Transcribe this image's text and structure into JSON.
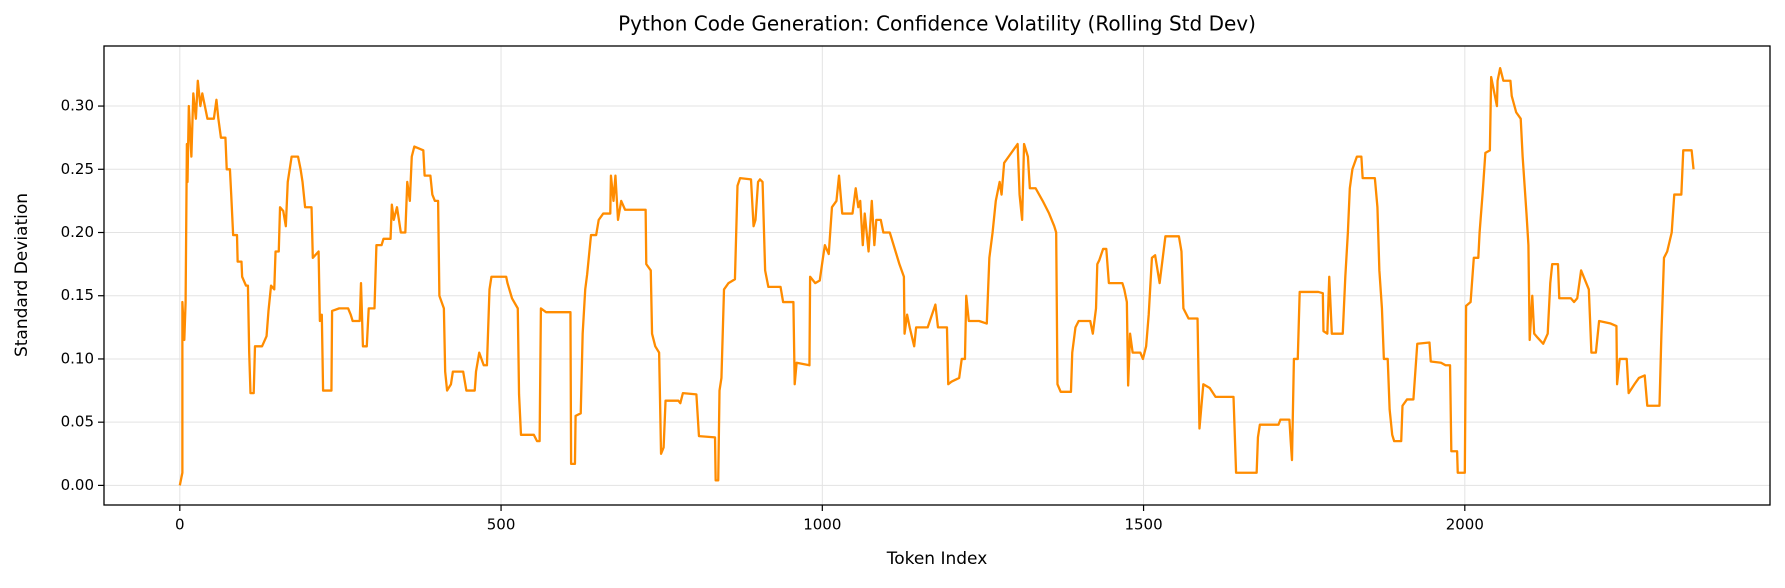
{
  "chart_data": {
    "type": "line",
    "title": "Python Code Generation: Confidence Volatility (Rolling Std Dev)",
    "x_label": "Token Index",
    "y_label": "Standard Deviation",
    "color": "#ff8c00",
    "grid": true,
    "xlim": [
      -118,
      2475
    ],
    "ylim": [
      -0.0155,
      0.3475
    ],
    "xticks": [
      0,
      500,
      1000,
      1500,
      2000
    ],
    "yticks": [
      {
        "value": 0,
        "label": "0.00"
      },
      {
        "value": 0.05,
        "label": "0.05"
      },
      {
        "value": 0.1,
        "label": "0.10"
      },
      {
        "value": 0.15,
        "label": "0.15"
      },
      {
        "value": 0.2,
        "label": "0.20"
      },
      {
        "value": 0.25,
        "label": "0.25"
      },
      {
        "value": 0.3,
        "label": "0.30"
      }
    ],
    "x": [
      0,
      4,
      4,
      7,
      9,
      11,
      12,
      14,
      18,
      21,
      25,
      28,
      32,
      35,
      43,
      53,
      57,
      60,
      64,
      71,
      73,
      78,
      80,
      83,
      89,
      90,
      96,
      97,
      103,
      106,
      108,
      110,
      115,
      117,
      128,
      135,
      138,
      142,
      147,
      149,
      154,
      156,
      161,
      165,
      168,
      174,
      184,
      188,
      191,
      195,
      205,
      207,
      216,
      218,
      221,
      223,
      236,
      237,
      248,
      262,
      266,
      269,
      280,
      282,
      285,
      291,
      294,
      303,
      306,
      314,
      317,
      328,
      330,
      333,
      338,
      344,
      351,
      354,
      358,
      361,
      365,
      379,
      381,
      390,
      393,
      397,
      402,
      404,
      411,
      413,
      416,
      422,
      425,
      441,
      446,
      459,
      461,
      466,
      473,
      478,
      482,
      485,
      508,
      510,
      517,
      526,
      528,
      531,
      551,
      556,
      560,
      562,
      570,
      608,
      609,
      615,
      616,
      624,
      627,
      631,
      634,
      640,
      648,
      652,
      659,
      670,
      671,
      675,
      678,
      682,
      687,
      693,
      725,
      726,
      733,
      735,
      740,
      746,
      749,
      753,
      756,
      776,
      779,
      783,
      804,
      808,
      833,
      834,
      838,
      840,
      843,
      847,
      854,
      864,
      868,
      872,
      889,
      893,
      896,
      900,
      903,
      907,
      911,
      916,
      935,
      939,
      955,
      957,
      960,
      980,
      981,
      989,
      996,
      1001,
      1004,
      1010,
      1015,
      1022,
      1026,
      1031,
      1047,
      1052,
      1056,
      1059,
      1063,
      1066,
      1072,
      1077,
      1081,
      1084,
      1091,
      1095,
      1105,
      1120,
      1127,
      1128,
      1132,
      1136,
      1143,
      1146,
      1164,
      1176,
      1180,
      1194,
      1196,
      1201,
      1213,
      1217,
      1222,
      1224,
      1228,
      1244,
      1256,
      1260,
      1265,
      1270,
      1276,
      1279,
      1283,
      1290,
      1297,
      1304,
      1307,
      1311,
      1314,
      1320,
      1323,
      1332,
      1343,
      1353,
      1361,
      1364,
      1366,
      1371,
      1387,
      1389,
      1394,
      1399,
      1417,
      1421,
      1426,
      1428,
      1431,
      1437,
      1442,
      1446,
      1467,
      1470,
      1474,
      1476,
      1479,
      1483,
      1495,
      1499,
      1504,
      1508,
      1513,
      1518,
      1525,
      1534,
      1555,
      1559,
      1562,
      1570,
      1584,
      1587,
      1593,
      1603,
      1612,
      1640,
      1644,
      1676,
      1678,
      1681,
      1710,
      1713,
      1727,
      1729,
      1731,
      1734,
      1740,
      1743,
      1772,
      1779,
      1780,
      1786,
      1789,
      1793,
      1810,
      1814,
      1818,
      1821,
      1825,
      1832,
      1839,
      1841,
      1860,
      1864,
      1867,
      1871,
      1874,
      1880,
      1883,
      1887,
      1890,
      1901,
      1903,
      1910,
      1920,
      1926,
      1945,
      1947,
      1963,
      1970,
      1977,
      1979,
      1988,
      1989,
      2000,
      2002,
      2009,
      2014,
      2021,
      2023,
      2028,
      2032,
      2039,
      2041,
      2050,
      2051,
      2055,
      2060,
      2071,
      2073,
      2080,
      2087,
      2090,
      2096,
      2099,
      2101,
      2105,
      2108,
      2113,
      2122,
      2129,
      2133,
      2136,
      2145,
      2147,
      2165,
      2170,
      2175,
      2181,
      2193,
      2197,
      2204,
      2209,
      2227,
      2236,
      2237,
      2241,
      2252,
      2255,
      2264,
      2271,
      2280,
      2284,
      2303,
      2306,
      2310,
      2315,
      2322,
      2326,
      2337,
      2340,
      2353,
      2356
    ],
    "values": [
      0,
      0.01,
      0.145,
      0.115,
      0.145,
      0.27,
      0.24,
      0.3,
      0.26,
      0.31,
      0.29,
      0.32,
      0.3,
      0.31,
      0.29,
      0.29,
      0.305,
      0.29,
      0.275,
      0.275,
      0.25,
      0.25,
      0.23,
      0.198,
      0.198,
      0.177,
      0.177,
      0.165,
      0.158,
      0.158,
      0.105,
      0.073,
      0.073,
      0.11,
      0.11,
      0.118,
      0.138,
      0.158,
      0.155,
      0.185,
      0.185,
      0.22,
      0.217,
      0.205,
      0.24,
      0.26,
      0.26,
      0.25,
      0.24,
      0.22,
      0.22,
      0.18,
      0.185,
      0.13,
      0.135,
      0.075,
      0.075,
      0.138,
      0.14,
      0.14,
      0.135,
      0.13,
      0.13,
      0.16,
      0.11,
      0.11,
      0.14,
      0.14,
      0.19,
      0.19,
      0.195,
      0.195,
      0.222,
      0.21,
      0.22,
      0.2,
      0.2,
      0.24,
      0.225,
      0.26,
      0.268,
      0.265,
      0.245,
      0.245,
      0.23,
      0.225,
      0.225,
      0.15,
      0.14,
      0.09,
      0.075,
      0.08,
      0.09,
      0.09,
      0.075,
      0.075,
      0.09,
      0.105,
      0.095,
      0.095,
      0.155,
      0.165,
      0.165,
      0.16,
      0.148,
      0.14,
      0.072,
      0.04,
      0.04,
      0.035,
      0.035,
      0.14,
      0.137,
      0.137,
      0.017,
      0.017,
      0.055,
      0.057,
      0.12,
      0.155,
      0.167,
      0.198,
      0.198,
      0.21,
      0.215,
      0.215,
      0.245,
      0.225,
      0.245,
      0.21,
      0.225,
      0.218,
      0.218,
      0.175,
      0.17,
      0.12,
      0.11,
      0.105,
      0.025,
      0.03,
      0.067,
      0.067,
      0.065,
      0.073,
      0.072,
      0.039,
      0.038,
      0.004,
      0.004,
      0.075,
      0.085,
      0.155,
      0.16,
      0.163,
      0.237,
      0.243,
      0.242,
      0.205,
      0.21,
      0.24,
      0.242,
      0.24,
      0.17,
      0.157,
      0.157,
      0.145,
      0.145,
      0.08,
      0.097,
      0.095,
      0.165,
      0.16,
      0.162,
      0.18,
      0.19,
      0.183,
      0.22,
      0.225,
      0.245,
      0.215,
      0.215,
      0.235,
      0.22,
      0.225,
      0.19,
      0.215,
      0.185,
      0.225,
      0.19,
      0.21,
      0.21,
      0.2,
      0.2,
      0.175,
      0.165,
      0.12,
      0.135,
      0.125,
      0.11,
      0.125,
      0.125,
      0.143,
      0.125,
      0.125,
      0.08,
      0.082,
      0.085,
      0.1,
      0.1,
      0.15,
      0.13,
      0.13,
      0.128,
      0.18,
      0.2,
      0.225,
      0.24,
      0.23,
      0.255,
      0.26,
      0.265,
      0.27,
      0.23,
      0.21,
      0.27,
      0.26,
      0.235,
      0.235,
      0.225,
      0.215,
      0.205,
      0.2,
      0.08,
      0.074,
      0.074,
      0.105,
      0.125,
      0.13,
      0.13,
      0.12,
      0.14,
      0.175,
      0.178,
      0.187,
      0.187,
      0.16,
      0.16,
      0.155,
      0.145,
      0.079,
      0.12,
      0.105,
      0.105,
      0.1,
      0.11,
      0.135,
      0.18,
      0.182,
      0.16,
      0.197,
      0.197,
      0.185,
      0.14,
      0.132,
      0.132,
      0.045,
      0.08,
      0.077,
      0.07,
      0.07,
      0.01,
      0.01,
      0.038,
      0.048,
      0.048,
      0.052,
      0.052,
      0.035,
      0.02,
      0.1,
      0.1,
      0.153,
      0.153,
      0.152,
      0.122,
      0.12,
      0.165,
      0.12,
      0.12,
      0.165,
      0.2,
      0.235,
      0.25,
      0.26,
      0.26,
      0.243,
      0.243,
      0.22,
      0.17,
      0.14,
      0.1,
      0.1,
      0.06,
      0.04,
      0.035,
      0.035,
      0.063,
      0.068,
      0.068,
      0.112,
      0.113,
      0.098,
      0.097,
      0.095,
      0.095,
      0.027,
      0.027,
      0.01,
      0.01,
      0.142,
      0.145,
      0.18,
      0.18,
      0.2,
      0.233,
      0.263,
      0.265,
      0.323,
      0.3,
      0.32,
      0.33,
      0.32,
      0.32,
      0.308,
      0.295,
      0.29,
      0.26,
      0.215,
      0.19,
      0.115,
      0.15,
      0.12,
      0.117,
      0.112,
      0.12,
      0.16,
      0.175,
      0.175,
      0.148,
      0.148,
      0.145,
      0.148,
      0.17,
      0.155,
      0.105,
      0.105,
      0.13,
      0.128,
      0.126,
      0.08,
      0.1,
      0.1,
      0.073,
      0.08,
      0.085,
      0.087,
      0.063,
      0.063,
      0.12,
      0.18,
      0.185,
      0.2,
      0.23,
      0.23,
      0.265,
      0.265,
      0.25
    ]
  }
}
